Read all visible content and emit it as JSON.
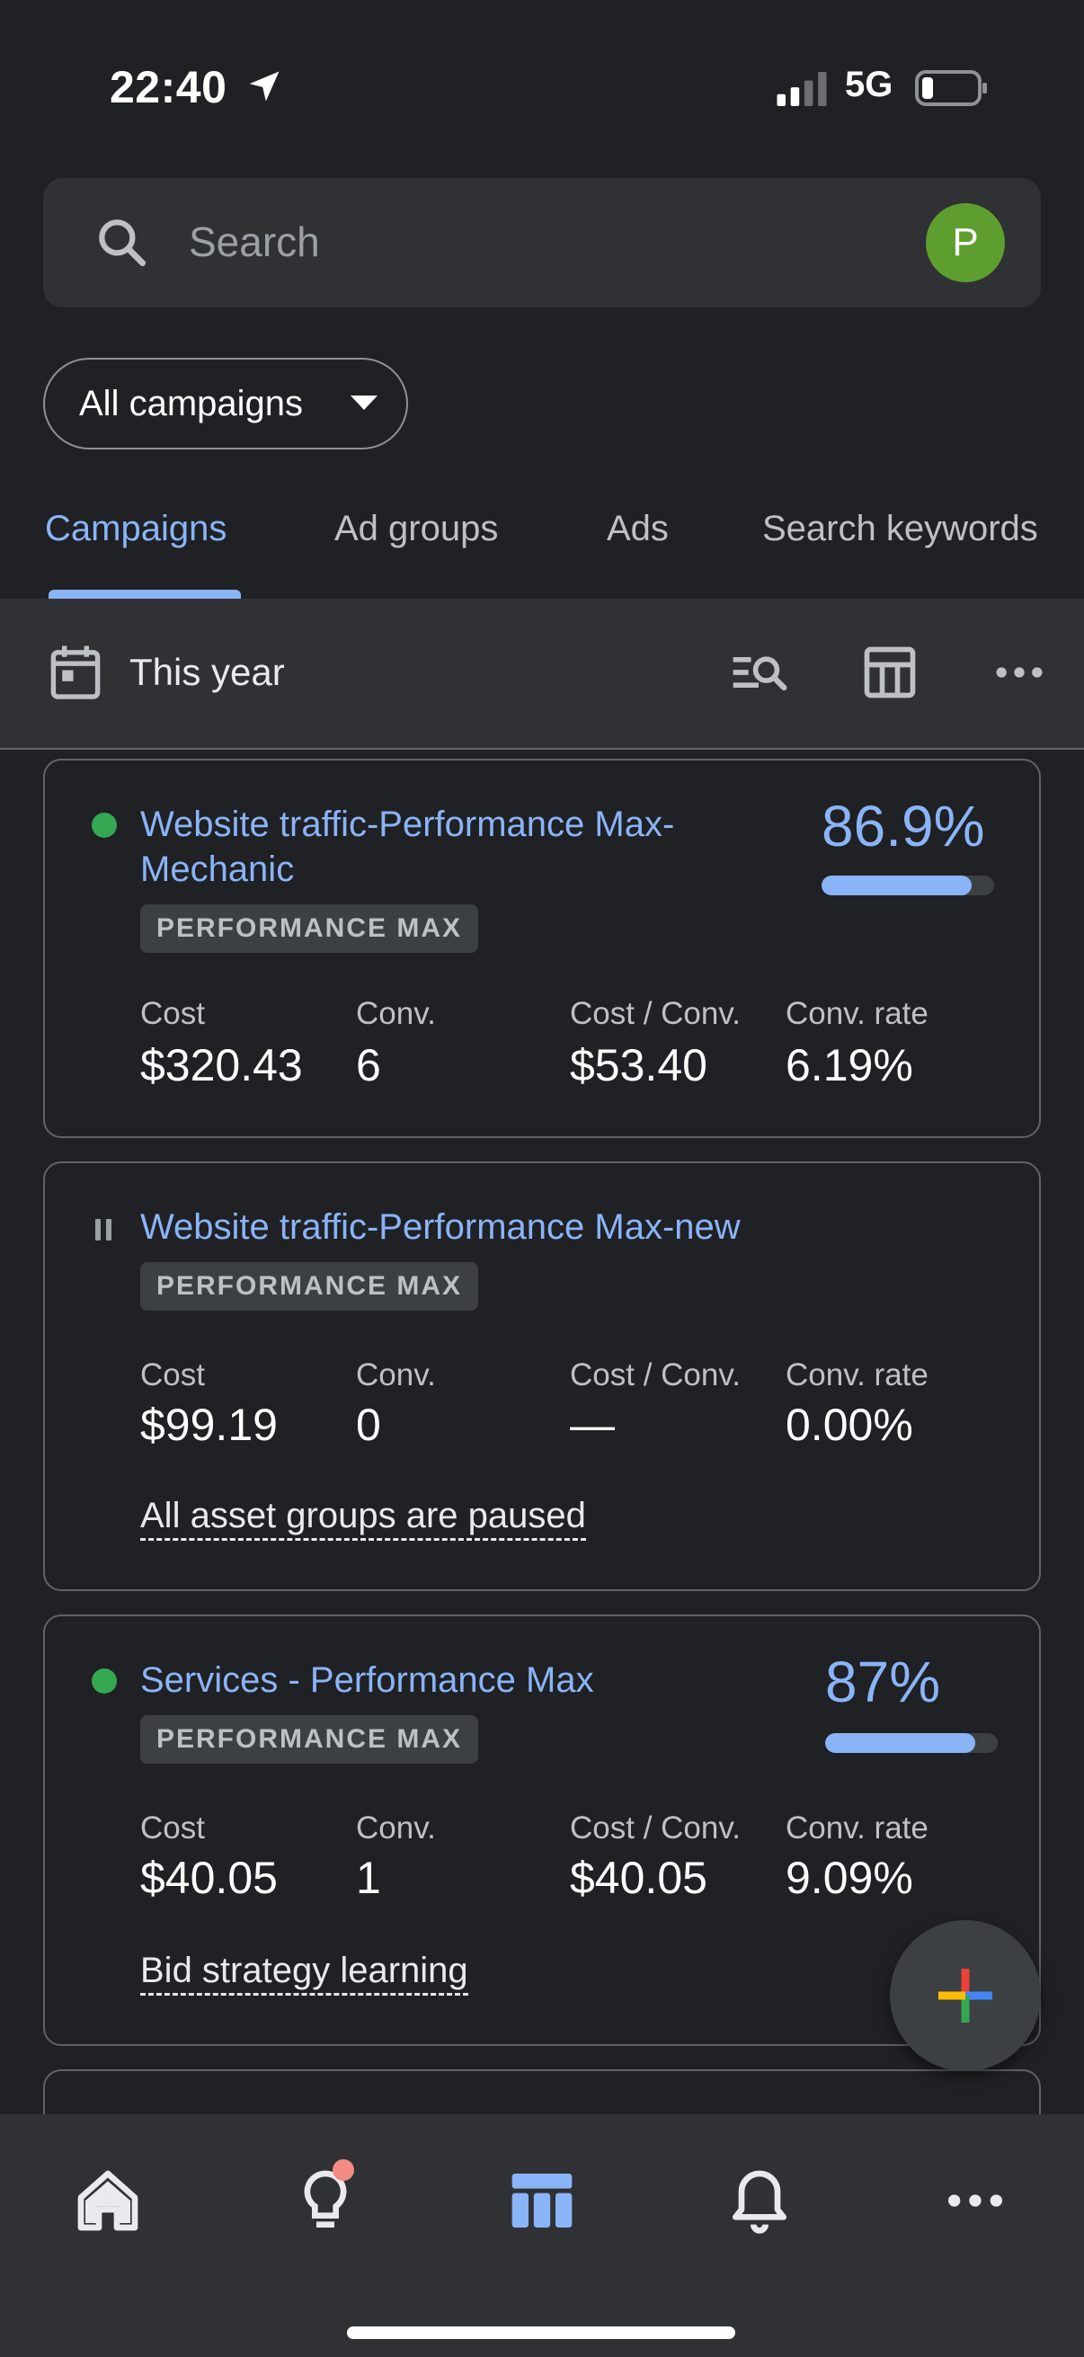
{
  "status_bar": {
    "time": "22:40",
    "network": "5G"
  },
  "search": {
    "placeholder": "Search",
    "avatar_letter": "P"
  },
  "filter": {
    "label": "All campaigns"
  },
  "tabs": [
    {
      "label": "Campaigns",
      "active": true
    },
    {
      "label": "Ad groups",
      "active": false
    },
    {
      "label": "Ads",
      "active": false
    },
    {
      "label": "Search keywords",
      "active": false
    }
  ],
  "toolbar": {
    "date_range": "This year"
  },
  "metric_labels": {
    "cost": "Cost",
    "conv": "Conv.",
    "cost_per_conv": "Cost / Conv.",
    "conv_rate": "Conv. rate"
  },
  "campaigns": [
    {
      "status": "enabled",
      "name_line1": "Website traffic-Performance Max-",
      "name_line2": "Mechanic",
      "type": "PERFORMANCE MAX",
      "score": "86.9%",
      "score_fraction": 0.869,
      "cost": "$320.43",
      "conv": "6",
      "cost_per_conv": "$53.40",
      "conv_rate": "6.19%",
      "note": ""
    },
    {
      "status": "paused",
      "name_line1": "Website traffic-Performance Max-new",
      "name_line2": "",
      "type": "PERFORMANCE MAX",
      "score": "",
      "cost": "$99.19",
      "conv": "0",
      "cost_per_conv": "—",
      "conv_rate": "0.00%",
      "note": "All asset groups are paused"
    },
    {
      "status": "enabled",
      "name_line1": "Services - Performance Max",
      "name_line2": "",
      "type": "PERFORMANCE MAX",
      "score": "87%",
      "score_fraction": 0.87,
      "cost": "$40.05",
      "conv": "1",
      "cost_per_conv": "$40.05",
      "conv_rate": "9.09%",
      "note": "Bid strategy learning"
    }
  ],
  "colors": {
    "accent": "#8ab4f8",
    "enabled": "#34a853",
    "background": "#202124",
    "surface": "#303134"
  },
  "icons": {
    "status_bar": [
      "location-arrow-icon",
      "signal-icon",
      "battery-icon"
    ],
    "toolbar": [
      "calendar-icon",
      "search-list-icon",
      "table-columns-icon",
      "more-horizontal-icon"
    ],
    "bottom_nav": [
      "home-icon",
      "lightbulb-icon",
      "campaigns-table-icon",
      "bell-icon",
      "more-icon"
    ]
  }
}
